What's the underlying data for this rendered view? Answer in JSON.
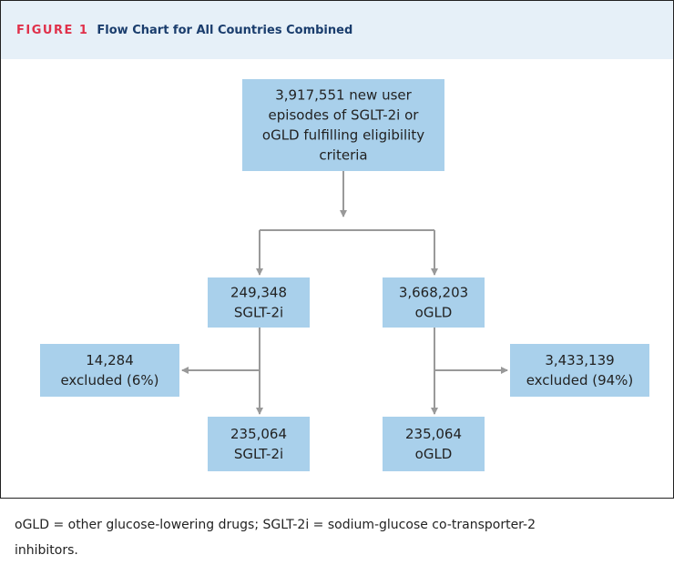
{
  "header": {
    "label": "FIGURE 1",
    "title": "Flow Chart for All Countries Combined"
  },
  "nodes": [
    {
      "lines": [
        "3,917,551 new user",
        "episodes of SGLT-2i or",
        "oGLD fulfilling eligibility",
        "criteria"
      ]
    },
    {
      "lines": [
        "249,348",
        "SGLT-2i"
      ]
    },
    {
      "lines": [
        "3,668,203",
        "oGLD"
      ]
    },
    {
      "lines": [
        "14,284",
        "excluded (6%)"
      ]
    },
    {
      "lines": [
        "3,433,139",
        "excluded (94%)"
      ]
    },
    {
      "lines": [
        "235,064",
        "SGLT-2i"
      ]
    },
    {
      "lines": [
        "235,064",
        "oGLD"
      ]
    }
  ],
  "footnote": "oGLD = other glucose-lowering drugs; SGLT-2i = sodium-glucose co-transporter-2 inhibitors."
}
